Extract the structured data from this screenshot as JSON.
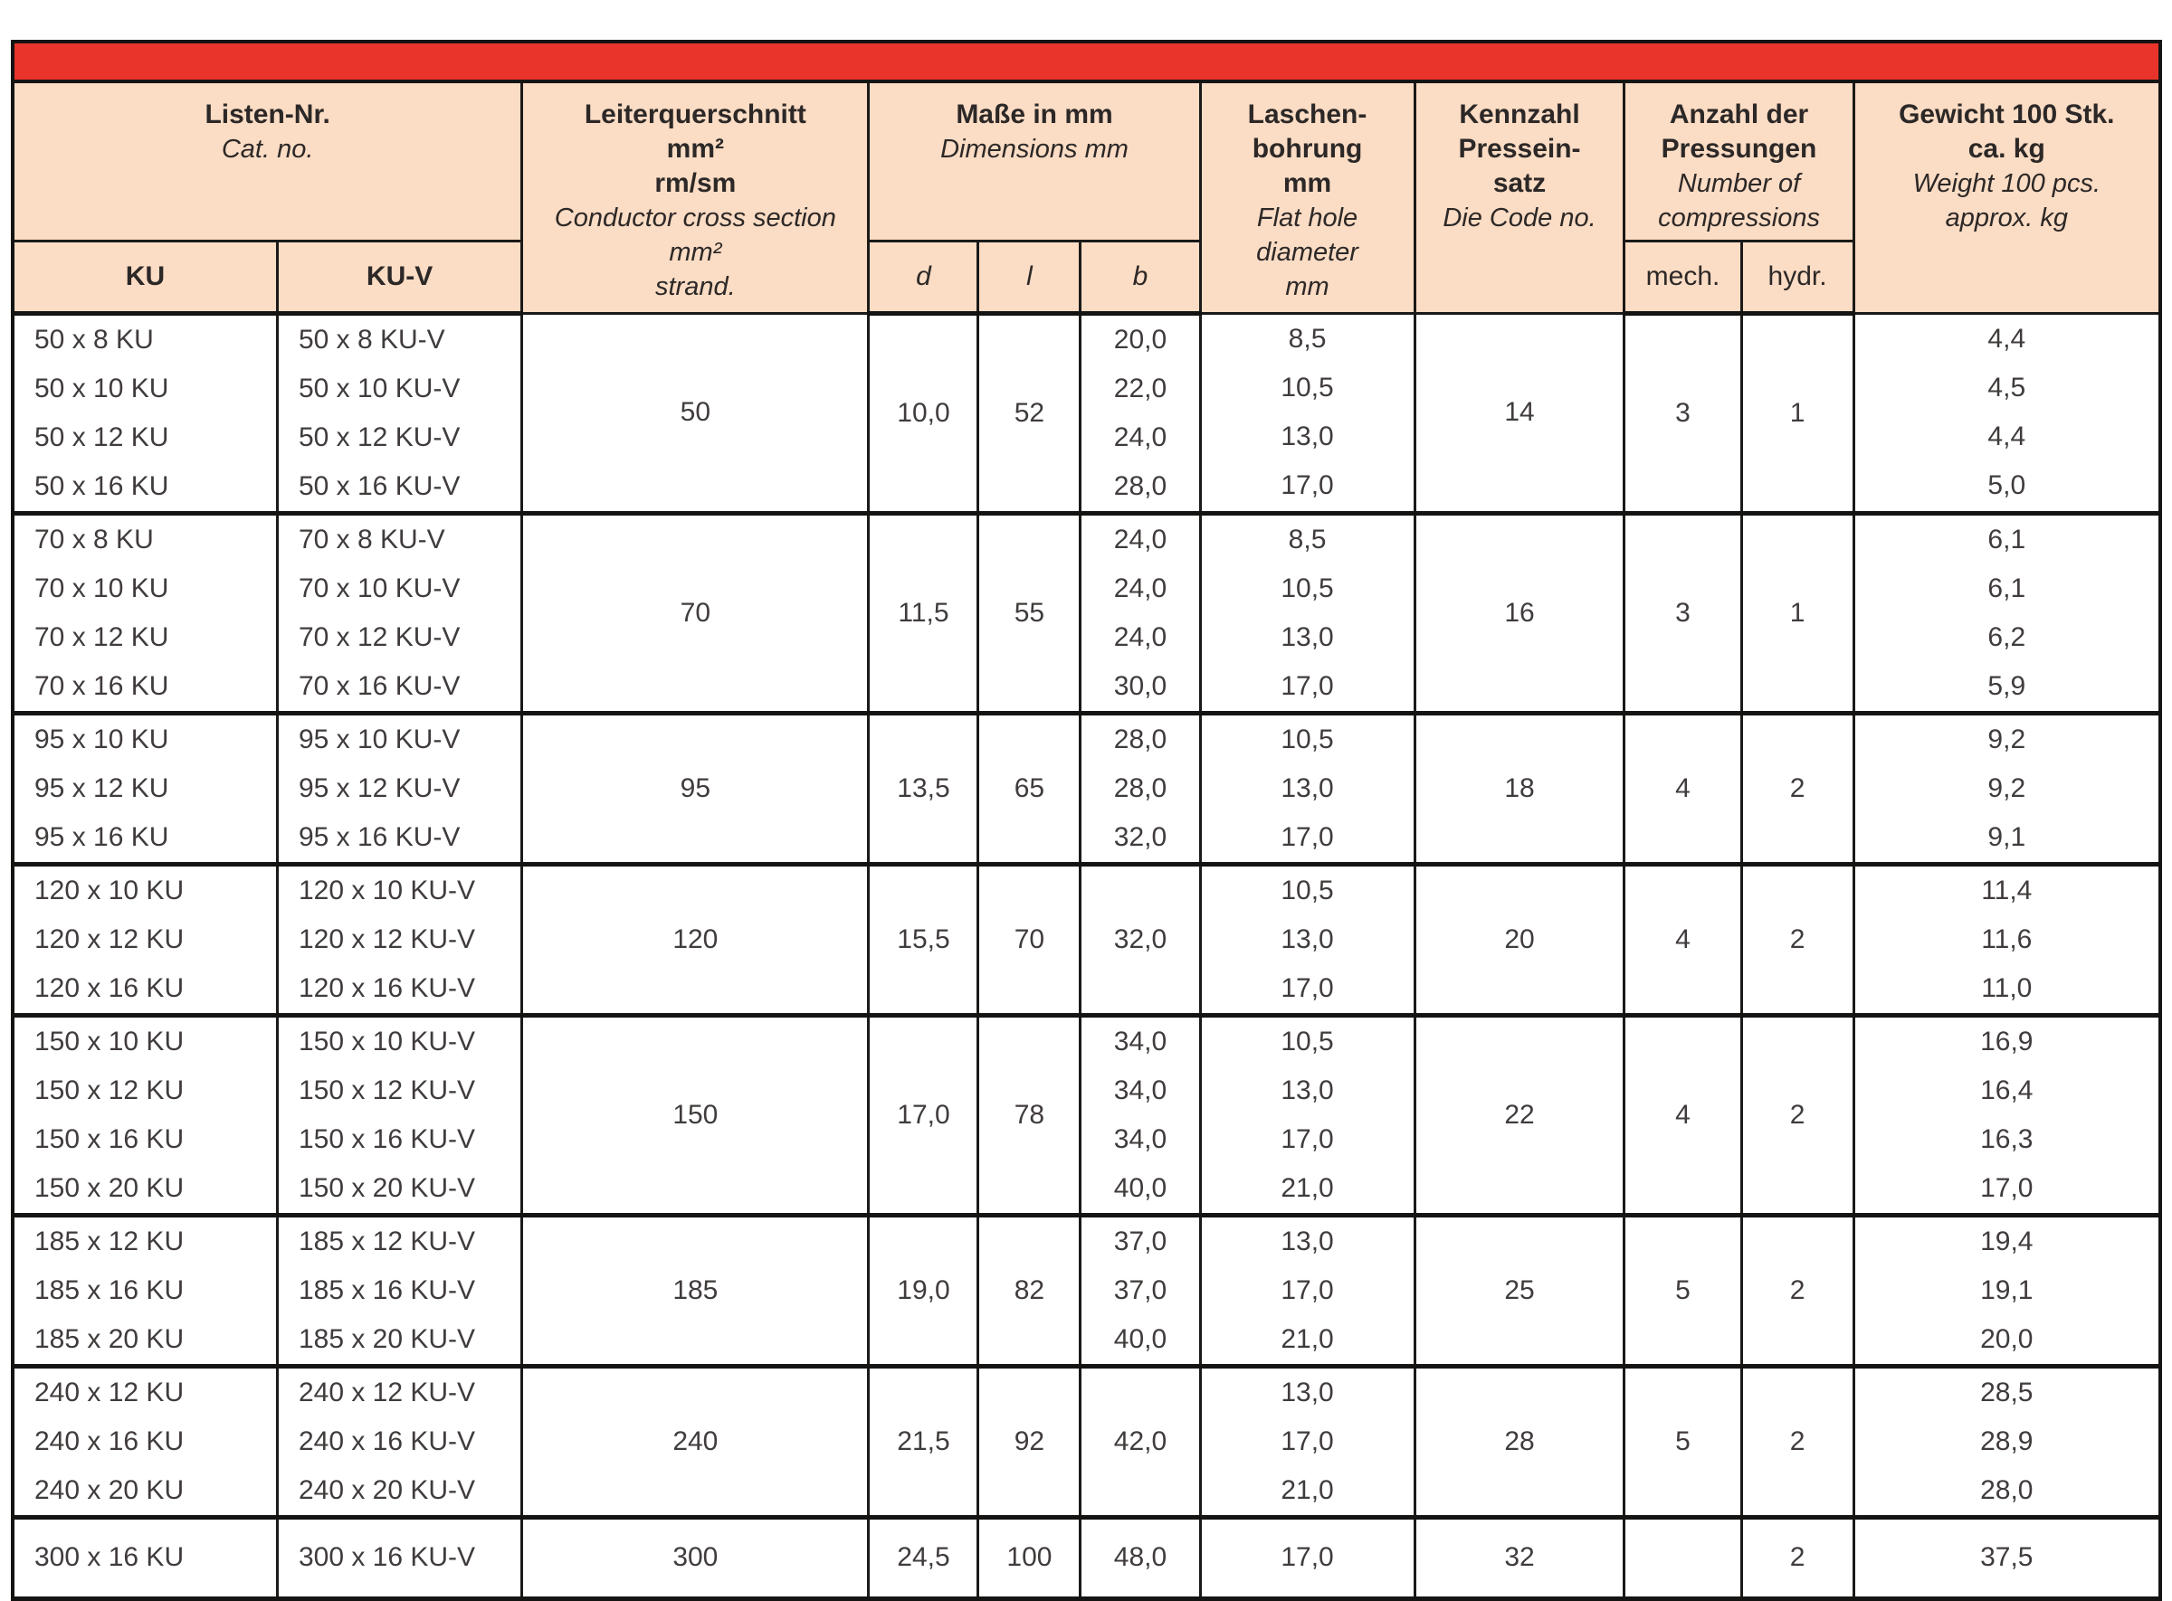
{
  "colors": {
    "accent_red": "#e9342b",
    "header_bg": "#fbdcc4",
    "border_black": "#151413",
    "body_text": "#403c3b"
  },
  "table": {
    "header": {
      "listen": {
        "de": "Listen-Nr.",
        "en": "Cat. no.",
        "sub_ku": "KU",
        "sub_kuv": "KU-V"
      },
      "leiter": {
        "de": [
          "Leiterquerschnitt",
          "mm²",
          "rm/sm"
        ],
        "en": [
          "Conductor cross section",
          "mm²",
          "strand."
        ]
      },
      "masse": {
        "de": "Maße in mm",
        "en": "Dimensions mm",
        "sub_d": "d",
        "sub_l": "l",
        "sub_b": "b"
      },
      "laschen": {
        "de": [
          "Laschen-",
          "bohrung",
          "mm"
        ],
        "en": [
          "Flat hole",
          "diameter",
          "mm"
        ]
      },
      "kennzahl": {
        "de": [
          "Kennzahl",
          "Pressein-",
          "satz"
        ],
        "en": [
          "Die Code no."
        ]
      },
      "anzahl": {
        "de": [
          "Anzahl der",
          "Pressungen"
        ],
        "en": [
          "Number of",
          "compressions"
        ],
        "sub_mech": "mech.",
        "sub_hydr": "hydr."
      },
      "gewicht": {
        "de": [
          "Gewicht 100 Stk.",
          "ca. kg"
        ],
        "en": [
          "Weight 100 pcs.",
          "approx. kg"
        ]
      }
    },
    "groups": [
      {
        "ku": [
          "50 x 8 KU",
          "50 x 10 KU",
          "50 x 12 KU",
          "50 x 16 KU"
        ],
        "kuv": [
          "50 x 8 KU-V",
          "50 x 10 KU-V",
          "50 x 12 KU-V",
          "50 x 16 KU-V"
        ],
        "cross": "50",
        "d": "10,0",
        "l": "52",
        "b": [
          "20,0",
          "22,0",
          "24,0",
          "28,0"
        ],
        "bore": [
          "8,5",
          "10,5",
          "13,0",
          "17,0"
        ],
        "code": "14",
        "mech": "3",
        "hydr": "1",
        "weight": [
          "4,4",
          "4,5",
          "4,4",
          "5,0"
        ]
      },
      {
        "ku": [
          "70 x 8 KU",
          "70 x 10 KU",
          "70 x 12 KU",
          "70 x 16 KU"
        ],
        "kuv": [
          "70 x 8 KU-V",
          "70 x 10 KU-V",
          "70 x 12 KU-V",
          "70 x 16 KU-V"
        ],
        "cross": "70",
        "d": "11,5",
        "l": "55",
        "b": [
          "24,0",
          "24,0",
          "24,0",
          "30,0"
        ],
        "bore": [
          "8,5",
          "10,5",
          "13,0",
          "17,0"
        ],
        "code": "16",
        "mech": "3",
        "hydr": "1",
        "weight": [
          "6,1",
          "6,1",
          "6,2",
          "5,9"
        ]
      },
      {
        "ku": [
          "95 x 10 KU",
          "95 x 12 KU",
          "95 x 16 KU"
        ],
        "kuv": [
          "95 x 10 KU-V",
          "95 x 12 KU-V",
          "95 x 16 KU-V"
        ],
        "cross": "95",
        "d": "13,5",
        "l": "65",
        "b": [
          "28,0",
          "28,0",
          "32,0"
        ],
        "bore": [
          "10,5",
          "13,0",
          "17,0"
        ],
        "code": "18",
        "mech": "4",
        "hydr": "2",
        "weight": [
          "9,2",
          "9,2",
          "9,1"
        ]
      },
      {
        "ku": [
          "120 x 10 KU",
          "120 x 12 KU",
          "120 x 16 KU"
        ],
        "kuv": [
          "120 x 10 KU-V",
          "120 x 12 KU-V",
          "120 x 16 KU-V"
        ],
        "cross": "120",
        "d": "15,5",
        "l": "70",
        "b": [
          "32,0"
        ],
        "bore": [
          "10,5",
          "13,0",
          "17,0"
        ],
        "code": "20",
        "mech": "4",
        "hydr": "2",
        "weight": [
          "11,4",
          "11,6",
          "11,0"
        ]
      },
      {
        "ku": [
          "150 x 10 KU",
          "150 x 12 KU",
          "150 x 16 KU",
          "150 x 20 KU"
        ],
        "kuv": [
          "150 x 10 KU-V",
          "150 x 12 KU-V",
          "150 x 16 KU-V",
          "150 x 20 KU-V"
        ],
        "cross": "150",
        "d": "17,0",
        "l": "78",
        "b": [
          "34,0",
          "34,0",
          "34,0",
          "40,0"
        ],
        "bore": [
          "10,5",
          "13,0",
          "17,0",
          "21,0"
        ],
        "code": "22",
        "mech": "4",
        "hydr": "2",
        "weight": [
          "16,9",
          "16,4",
          "16,3",
          "17,0"
        ]
      },
      {
        "ku": [
          "185 x 12 KU",
          "185 x 16 KU",
          "185 x 20 KU"
        ],
        "kuv": [
          "185 x 12 KU-V",
          "185 x 16 KU-V",
          "185 x 20 KU-V"
        ],
        "cross": "185",
        "d": "19,0",
        "l": "82",
        "b": [
          "37,0",
          "37,0",
          "40,0"
        ],
        "bore": [
          "13,0",
          "17,0",
          "21,0"
        ],
        "code": "25",
        "mech": "5",
        "hydr": "2",
        "weight": [
          "19,4",
          "19,1",
          "20,0"
        ]
      },
      {
        "ku": [
          "240 x 12 KU",
          "240 x 16 KU",
          "240 x 20 KU"
        ],
        "kuv": [
          "240 x 12 KU-V",
          "240 x 16 KU-V",
          "240 x 20 KU-V"
        ],
        "cross": "240",
        "d": "21,5",
        "l": "92",
        "b": [
          "42,0"
        ],
        "bore": [
          "13,0",
          "17,0",
          "21,0"
        ],
        "code": "28",
        "mech": "5",
        "hydr": "2",
        "weight": [
          "28,5",
          "28,9",
          "28,0"
        ]
      },
      {
        "ku": [
          "300 x 16 KU"
        ],
        "kuv": [
          "300 x 16 KU-V"
        ],
        "cross": "300",
        "d": "24,5",
        "l": "100",
        "b": [
          "48,0"
        ],
        "bore": [
          "17,0"
        ],
        "code": "32",
        "mech": "",
        "hydr": "2",
        "weight": [
          "37,5"
        ]
      }
    ]
  }
}
